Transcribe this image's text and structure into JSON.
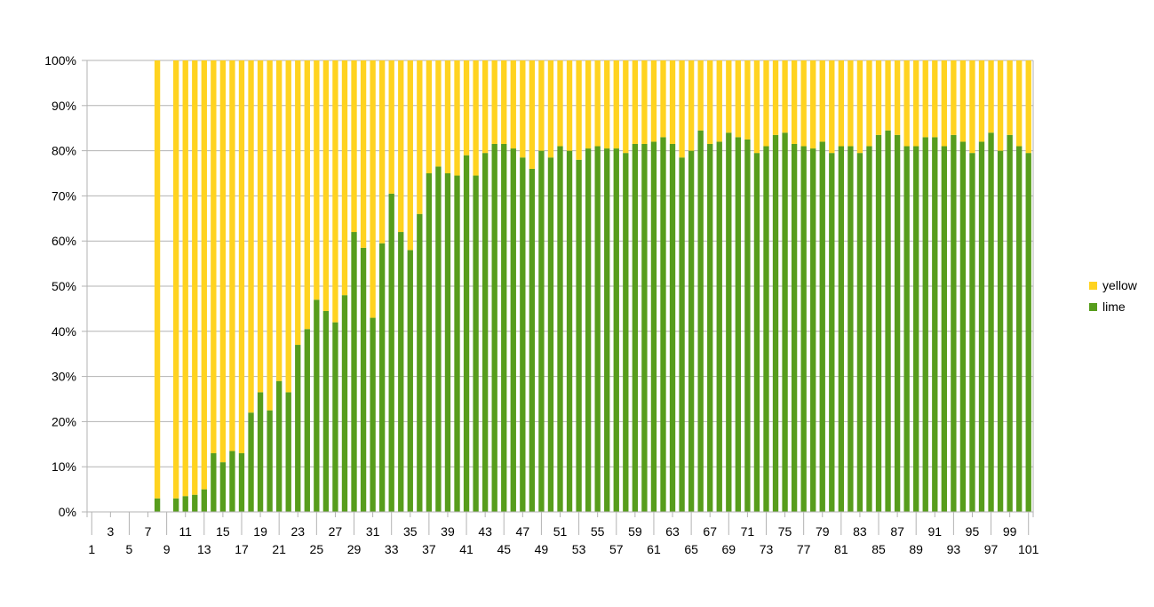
{
  "chart_data": {
    "type": "bar",
    "stacked": "percent",
    "categories": [
      1,
      2,
      3,
      4,
      5,
      6,
      7,
      8,
      9,
      10,
      11,
      12,
      13,
      14,
      15,
      16,
      17,
      18,
      19,
      20,
      21,
      22,
      23,
      24,
      25,
      26,
      27,
      28,
      29,
      30,
      31,
      32,
      33,
      34,
      35,
      36,
      37,
      38,
      39,
      40,
      41,
      42,
      43,
      44,
      45,
      46,
      47,
      48,
      49,
      50,
      51,
      52,
      53,
      54,
      55,
      56,
      57,
      58,
      59,
      60,
      61,
      62,
      63,
      64,
      65,
      66,
      67,
      68,
      69,
      70,
      71,
      72,
      73,
      74,
      75,
      76,
      77,
      78,
      79,
      80,
      81,
      82,
      83,
      84,
      85,
      86,
      87,
      88,
      89,
      90,
      91,
      92,
      93,
      94,
      95,
      96,
      97,
      98,
      99,
      100,
      101
    ],
    "series": [
      {
        "name": "lime",
        "color": "#579d1c",
        "values": [
          null,
          null,
          null,
          null,
          null,
          null,
          null,
          3,
          null,
          3,
          3.5,
          3.8,
          5,
          13,
          11,
          13.5,
          13,
          22,
          26.5,
          22.5,
          29,
          26.5,
          37,
          40.5,
          47,
          44.5,
          42,
          48,
          62,
          58.5,
          43,
          59.5,
          70.5,
          62,
          58,
          66,
          75,
          76.5,
          75,
          74.5,
          79,
          74.5,
          79.5,
          81.5,
          81.5,
          80.5,
          78.5,
          76,
          80,
          78.5,
          81,
          80,
          78,
          80.5,
          81,
          80.5,
          80.5,
          79.5,
          81.5,
          81.5,
          82,
          83,
          81.5,
          78.5,
          80,
          84.5,
          81.5,
          82,
          84,
          83,
          82.5,
          79.5,
          81,
          83.5,
          84,
          81.5,
          81,
          80.5,
          82,
          79.5,
          81,
          81,
          79.5,
          81,
          83.5,
          84.5,
          83.5,
          81,
          81,
          83,
          83,
          81,
          83.5,
          82,
          79.5,
          82,
          84,
          80,
          83.5,
          81,
          79.5
        ]
      },
      {
        "name": "yellow",
        "color": "#ffd320",
        "values": [
          null,
          null,
          null,
          null,
          null,
          null,
          null,
          97,
          null,
          97,
          96.5,
          96.2,
          95,
          87,
          89,
          86.5,
          87,
          78,
          73.5,
          77.5,
          71,
          73.5,
          63,
          59.5,
          53,
          55.5,
          58,
          52,
          38,
          41.5,
          57,
          40.5,
          29.5,
          38,
          42,
          34,
          25,
          23.5,
          25,
          25.5,
          21,
          25.5,
          20.5,
          18.5,
          18.5,
          19.5,
          21.5,
          24,
          20,
          21.5,
          19,
          20,
          22,
          19.5,
          19,
          19.5,
          19.5,
          20.5,
          18.5,
          18.5,
          18,
          17,
          18.5,
          21.5,
          20,
          15.5,
          18.5,
          18,
          16,
          17,
          17.5,
          20.5,
          19,
          16.5,
          16,
          18.5,
          19,
          19.5,
          18,
          20.5,
          19,
          19,
          20.5,
          19,
          16.5,
          15.5,
          16.5,
          19,
          19,
          17,
          17,
          19,
          16.5,
          18,
          20.5,
          18,
          16,
          20,
          16.5,
          19,
          20.5
        ]
      }
    ],
    "y_ticks": [
      "0%",
      "10%",
      "20%",
      "30%",
      "40%",
      "50%",
      "60%",
      "70%",
      "80%",
      "90%",
      "100%"
    ],
    "ylim": [
      0,
      100
    ],
    "grid": true,
    "legend": "right",
    "legend_entries": [
      "yellow",
      "lime"
    ]
  }
}
